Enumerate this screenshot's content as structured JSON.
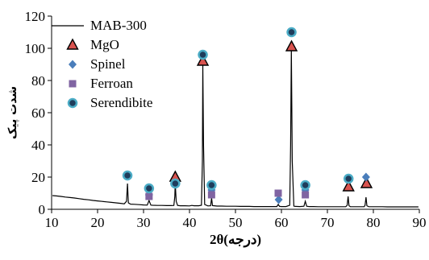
{
  "chart_data": {
    "type": "line",
    "xlabel": "2θ(درجه)",
    "ylabel": "شدت پیک",
    "xlim": [
      10,
      90
    ],
    "ylim": [
      0,
      120
    ],
    "x_ticks": [
      10,
      20,
      30,
      40,
      50,
      60,
      70,
      80,
      90
    ],
    "y_ticks": [
      0,
      20,
      40,
      60,
      80,
      100,
      120
    ],
    "grid": false,
    "legend_position": "top-left",
    "line_series": {
      "name": "MAB-300",
      "color": "#000000",
      "points": [
        [
          10.2,
          8.5
        ],
        [
          11,
          8.3
        ],
        [
          12,
          8.0
        ],
        [
          13,
          7.6
        ],
        [
          14,
          7.3
        ],
        [
          15,
          7.0
        ],
        [
          16,
          6.6
        ],
        [
          17,
          6.2
        ],
        [
          18,
          5.9
        ],
        [
          19,
          5.5
        ],
        [
          20,
          5.2
        ],
        [
          21,
          4.9
        ],
        [
          22,
          4.6
        ],
        [
          23,
          4.3
        ],
        [
          24,
          4.0
        ],
        [
          25,
          3.7
        ],
        [
          25.8,
          3.4
        ],
        [
          26.3,
          5
        ],
        [
          26.5,
          16
        ],
        [
          26.7,
          4
        ],
        [
          27.2,
          3.2
        ],
        [
          28,
          3.1
        ],
        [
          29,
          2.9
        ],
        [
          30,
          2.7
        ],
        [
          30.8,
          2.6
        ],
        [
          31.2,
          5.5
        ],
        [
          31.6,
          2.6
        ],
        [
          32,
          2.5
        ],
        [
          33,
          2.4
        ],
        [
          34,
          2.4
        ],
        [
          35,
          2.3
        ],
        [
          36,
          2.3
        ],
        [
          36.6,
          2.4
        ],
        [
          36.8,
          8
        ],
        [
          36.9,
          16.5
        ],
        [
          37.1,
          5
        ],
        [
          37.4,
          2.4
        ],
        [
          38,
          2.2
        ],
        [
          39,
          2.2
        ],
        [
          40,
          2.1
        ],
        [
          40.5,
          2.4
        ],
        [
          41,
          2.2
        ],
        [
          42,
          2.2
        ],
        [
          42.6,
          2.5
        ],
        [
          42.8,
          30
        ],
        [
          42.9,
          90
        ],
        [
          43.05,
          40
        ],
        [
          43.3,
          3
        ],
        [
          44,
          2.1
        ],
        [
          44.6,
          2.2
        ],
        [
          44.8,
          7
        ],
        [
          45,
          2.3
        ],
        [
          46,
          2
        ],
        [
          47,
          2
        ],
        [
          48,
          1.9
        ],
        [
          49,
          1.9
        ],
        [
          50,
          1.9
        ],
        [
          51,
          1.8
        ],
        [
          52,
          1.8
        ],
        [
          53,
          1.8
        ],
        [
          54,
          1.7
        ],
        [
          55,
          1.7
        ],
        [
          56,
          1.7
        ],
        [
          57,
          1.7
        ],
        [
          58,
          1.7
        ],
        [
          59,
          1.7
        ],
        [
          59.3,
          3
        ],
        [
          59.6,
          1.8
        ],
        [
          60,
          1.7
        ],
        [
          61,
          1.7
        ],
        [
          61.8,
          2.5
        ],
        [
          62.0,
          40
        ],
        [
          62.15,
          100
        ],
        [
          62.35,
          30
        ],
        [
          62.7,
          2
        ],
        [
          63,
          1.8
        ],
        [
          64,
          1.7
        ],
        [
          64.9,
          1.9
        ],
        [
          65.2,
          5
        ],
        [
          65.5,
          1.9
        ],
        [
          66,
          1.7
        ],
        [
          67,
          1.7
        ],
        [
          68,
          1.6
        ],
        [
          69,
          1.6
        ],
        [
          70,
          1.6
        ],
        [
          71,
          1.6
        ],
        [
          72,
          1.6
        ],
        [
          73,
          1.6
        ],
        [
          74,
          1.6
        ],
        [
          74.3,
          2.5
        ],
        [
          74.5,
          8
        ],
        [
          74.7,
          2.2
        ],
        [
          75,
          1.6
        ],
        [
          76,
          1.6
        ],
        [
          77,
          1.6
        ],
        [
          78,
          1.6
        ],
        [
          78.2,
          2.5
        ],
        [
          78.4,
          7.5
        ],
        [
          78.6,
          2.2
        ],
        [
          79,
          1.6
        ],
        [
          80,
          1.6
        ],
        [
          81,
          1.6
        ],
        [
          82,
          1.6
        ],
        [
          83,
          1.5
        ],
        [
          84,
          1.5
        ],
        [
          85,
          1.5
        ],
        [
          86,
          1.5
        ],
        [
          87,
          1.5
        ],
        [
          88,
          1.5
        ],
        [
          89,
          1.5
        ],
        [
          89.8,
          1.5
        ]
      ]
    },
    "marker_series": [
      {
        "name": "MgO",
        "marker": "triangle",
        "color": "#d9534f",
        "points": [
          [
            36.9,
            20
          ],
          [
            42.9,
            92
          ],
          [
            62.2,
            101
          ],
          [
            74.6,
            14
          ],
          [
            78.5,
            16
          ]
        ]
      },
      {
        "name": "Spinel",
        "marker": "diamond",
        "color": "#4a7ebb",
        "points": [
          [
            31.2,
            9
          ],
          [
            36.9,
            16
          ],
          [
            44.8,
            12
          ],
          [
            59.4,
            6
          ],
          [
            65.2,
            12
          ],
          [
            78.4,
            20
          ]
        ]
      },
      {
        "name": "Ferroan",
        "marker": "square",
        "color": "#8064a2",
        "points": [
          [
            31.2,
            8
          ],
          [
            44.8,
            9
          ],
          [
            59.3,
            10
          ],
          [
            65.2,
            9
          ]
        ]
      },
      {
        "name": "Serendibite",
        "marker": "circle",
        "color": "#4bacc6",
        "points": [
          [
            26.5,
            21
          ],
          [
            31.2,
            13
          ],
          [
            36.9,
            16
          ],
          [
            42.9,
            96
          ],
          [
            44.8,
            15
          ],
          [
            62.2,
            110
          ],
          [
            65.2,
            15
          ],
          [
            74.6,
            19
          ]
        ]
      }
    ]
  }
}
